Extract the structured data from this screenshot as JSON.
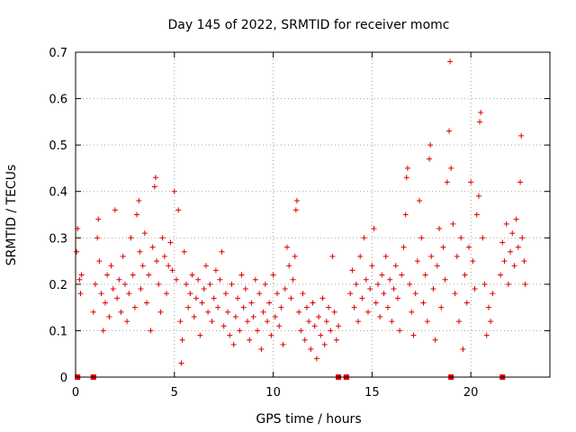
{
  "chart_data": {
    "type": "scatter",
    "title": "Day 145 of 2022, SRMTID for receiver momc",
    "xlabel": "GPS time / hours",
    "ylabel": "SRMTID / TECUs",
    "xlim": [
      0,
      24
    ],
    "ylim": [
      0,
      0.7
    ],
    "xticks": [
      0,
      5,
      10,
      15,
      20
    ],
    "yticks": [
      0,
      0.1,
      0.2,
      0.3,
      0.4,
      0.5,
      0.6,
      0.7
    ],
    "grid": true,
    "marker": "+",
    "color": "#dd0000",
    "series": [
      {
        "name": "SRMTID",
        "points": [
          [
            0.05,
            0.27
          ],
          [
            0.1,
            0.32
          ],
          [
            0.2,
            0.21
          ],
          [
            0.25,
            0.18
          ],
          [
            0.3,
            0.22
          ],
          [
            0.9,
            0.14
          ],
          [
            1.0,
            0.2
          ],
          [
            1.1,
            0.3
          ],
          [
            1.15,
            0.34
          ],
          [
            1.2,
            0.25
          ],
          [
            1.3,
            0.18
          ],
          [
            1.4,
            0.1
          ],
          [
            1.5,
            0.16
          ],
          [
            1.6,
            0.22
          ],
          [
            1.7,
            0.13
          ],
          [
            1.8,
            0.24
          ],
          [
            1.9,
            0.19
          ],
          [
            2.0,
            0.36
          ],
          [
            2.1,
            0.17
          ],
          [
            2.2,
            0.21
          ],
          [
            2.3,
            0.14
          ],
          [
            2.4,
            0.26
          ],
          [
            2.5,
            0.2
          ],
          [
            2.6,
            0.12
          ],
          [
            2.7,
            0.18
          ],
          [
            2.8,
            0.3
          ],
          [
            2.9,
            0.22
          ],
          [
            3.0,
            0.15
          ],
          [
            3.1,
            0.35
          ],
          [
            3.2,
            0.38
          ],
          [
            3.25,
            0.27
          ],
          [
            3.3,
            0.19
          ],
          [
            3.4,
            0.24
          ],
          [
            3.5,
            0.31
          ],
          [
            3.6,
            0.16
          ],
          [
            3.7,
            0.22
          ],
          [
            3.8,
            0.1
          ],
          [
            3.9,
            0.28
          ],
          [
            4.0,
            0.41
          ],
          [
            4.05,
            0.43
          ],
          [
            4.1,
            0.25
          ],
          [
            4.2,
            0.2
          ],
          [
            4.3,
            0.14
          ],
          [
            4.4,
            0.3
          ],
          [
            4.5,
            0.26
          ],
          [
            4.6,
            0.18
          ],
          [
            4.7,
            0.24
          ],
          [
            4.8,
            0.29
          ],
          [
            4.9,
            0.23
          ],
          [
            5.0,
            0.4
          ],
          [
            5.1,
            0.21
          ],
          [
            5.2,
            0.36
          ],
          [
            5.3,
            0.12
          ],
          [
            5.35,
            0.03
          ],
          [
            5.4,
            0.08
          ],
          [
            5.5,
            0.27
          ],
          [
            5.6,
            0.2
          ],
          [
            5.7,
            0.15
          ],
          [
            5.8,
            0.18
          ],
          [
            5.9,
            0.22
          ],
          [
            6.0,
            0.13
          ],
          [
            6.1,
            0.17
          ],
          [
            6.2,
            0.21
          ],
          [
            6.3,
            0.09
          ],
          [
            6.4,
            0.16
          ],
          [
            6.5,
            0.19
          ],
          [
            6.6,
            0.24
          ],
          [
            6.7,
            0.14
          ],
          [
            6.8,
            0.2
          ],
          [
            6.9,
            0.12
          ],
          [
            7.0,
            0.17
          ],
          [
            7.1,
            0.23
          ],
          [
            7.2,
            0.15
          ],
          [
            7.3,
            0.21
          ],
          [
            7.4,
            0.27
          ],
          [
            7.5,
            0.11
          ],
          [
            7.6,
            0.18
          ],
          [
            7.7,
            0.14
          ],
          [
            7.8,
            0.09
          ],
          [
            7.9,
            0.2
          ],
          [
            8.0,
            0.07
          ],
          [
            8.1,
            0.13
          ],
          [
            8.2,
            0.17
          ],
          [
            8.3,
            0.1
          ],
          [
            8.4,
            0.22
          ],
          [
            8.5,
            0.15
          ],
          [
            8.6,
            0.19
          ],
          [
            8.7,
            0.12
          ],
          [
            8.8,
            0.08
          ],
          [
            8.9,
            0.16
          ],
          [
            9.0,
            0.13
          ],
          [
            9.1,
            0.21
          ],
          [
            9.2,
            0.1
          ],
          [
            9.3,
            0.18
          ],
          [
            9.4,
            0.06
          ],
          [
            9.5,
            0.14
          ],
          [
            9.6,
            0.2
          ],
          [
            9.7,
            0.12
          ],
          [
            9.8,
            0.16
          ],
          [
            9.9,
            0.09
          ],
          [
            10.0,
            0.22
          ],
          [
            10.1,
            0.13
          ],
          [
            10.2,
            0.18
          ],
          [
            10.3,
            0.11
          ],
          [
            10.4,
            0.15
          ],
          [
            10.5,
            0.07
          ],
          [
            10.6,
            0.19
          ],
          [
            10.7,
            0.28
          ],
          [
            10.8,
            0.24
          ],
          [
            10.9,
            0.17
          ],
          [
            11.0,
            0.21
          ],
          [
            11.1,
            0.26
          ],
          [
            11.15,
            0.36
          ],
          [
            11.2,
            0.38
          ],
          [
            11.3,
            0.14
          ],
          [
            11.4,
            0.1
          ],
          [
            11.5,
            0.18
          ],
          [
            11.6,
            0.08
          ],
          [
            11.7,
            0.15
          ],
          [
            11.8,
            0.12
          ],
          [
            11.9,
            0.06
          ],
          [
            12.0,
            0.16
          ],
          [
            12.1,
            0.11
          ],
          [
            12.2,
            0.04
          ],
          [
            12.3,
            0.13
          ],
          [
            12.4,
            0.09
          ],
          [
            12.5,
            0.17
          ],
          [
            12.6,
            0.07
          ],
          [
            12.7,
            0.12
          ],
          [
            12.8,
            0.15
          ],
          [
            12.9,
            0.1
          ],
          [
            13.0,
            0.26
          ],
          [
            13.1,
            0.14
          ],
          [
            13.2,
            0.08
          ],
          [
            13.3,
            0.11
          ],
          [
            13.9,
            0.18
          ],
          [
            14.0,
            0.23
          ],
          [
            14.1,
            0.15
          ],
          [
            14.2,
            0.2
          ],
          [
            14.3,
            0.12
          ],
          [
            14.4,
            0.26
          ],
          [
            14.5,
            0.17
          ],
          [
            14.6,
            0.3
          ],
          [
            14.7,
            0.21
          ],
          [
            14.8,
            0.14
          ],
          [
            14.9,
            0.19
          ],
          [
            15.0,
            0.24
          ],
          [
            15.1,
            0.32
          ],
          [
            15.2,
            0.16
          ],
          [
            15.3,
            0.2
          ],
          [
            15.4,
            0.13
          ],
          [
            15.5,
            0.22
          ],
          [
            15.6,
            0.18
          ],
          [
            15.7,
            0.26
          ],
          [
            15.8,
            0.15
          ],
          [
            15.9,
            0.21
          ],
          [
            16.0,
            0.12
          ],
          [
            16.1,
            0.19
          ],
          [
            16.2,
            0.24
          ],
          [
            16.3,
            0.17
          ],
          [
            16.4,
            0.1
          ],
          [
            16.5,
            0.22
          ],
          [
            16.6,
            0.28
          ],
          [
            16.7,
            0.35
          ],
          [
            16.75,
            0.43
          ],
          [
            16.8,
            0.45
          ],
          [
            16.9,
            0.2
          ],
          [
            17.0,
            0.14
          ],
          [
            17.1,
            0.09
          ],
          [
            17.2,
            0.18
          ],
          [
            17.3,
            0.25
          ],
          [
            17.4,
            0.38
          ],
          [
            17.5,
            0.3
          ],
          [
            17.6,
            0.16
          ],
          [
            17.7,
            0.22
          ],
          [
            17.8,
            0.12
          ],
          [
            17.9,
            0.47
          ],
          [
            17.95,
            0.5
          ],
          [
            18.0,
            0.26
          ],
          [
            18.1,
            0.19
          ],
          [
            18.2,
            0.08
          ],
          [
            18.3,
            0.24
          ],
          [
            18.4,
            0.32
          ],
          [
            18.5,
            0.15
          ],
          [
            18.6,
            0.28
          ],
          [
            18.7,
            0.21
          ],
          [
            18.8,
            0.42
          ],
          [
            18.9,
            0.53
          ],
          [
            18.95,
            0.68
          ],
          [
            19.0,
            0.45
          ],
          [
            19.1,
            0.33
          ],
          [
            19.2,
            0.18
          ],
          [
            19.3,
            0.26
          ],
          [
            19.4,
            0.12
          ],
          [
            19.5,
            0.3
          ],
          [
            19.6,
            0.06
          ],
          [
            19.7,
            0.22
          ],
          [
            19.8,
            0.16
          ],
          [
            19.9,
            0.28
          ],
          [
            20.0,
            0.42
          ],
          [
            20.1,
            0.25
          ],
          [
            20.2,
            0.19
          ],
          [
            20.3,
            0.35
          ],
          [
            20.4,
            0.39
          ],
          [
            20.45,
            0.55
          ],
          [
            20.5,
            0.57
          ],
          [
            20.6,
            0.3
          ],
          [
            20.7,
            0.2
          ],
          [
            20.8,
            0.09
          ],
          [
            20.9,
            0.15
          ],
          [
            21.0,
            0.12
          ],
          [
            21.1,
            0.18
          ],
          [
            21.5,
            0.22
          ],
          [
            21.6,
            0.29
          ],
          [
            21.7,
            0.25
          ],
          [
            21.8,
            0.33
          ],
          [
            21.9,
            0.2
          ],
          [
            22.0,
            0.27
          ],
          [
            22.1,
            0.31
          ],
          [
            22.2,
            0.24
          ],
          [
            22.3,
            0.34
          ],
          [
            22.4,
            0.28
          ],
          [
            22.5,
            0.42
          ],
          [
            22.55,
            0.52
          ],
          [
            22.6,
            0.3
          ],
          [
            22.7,
            0.25
          ],
          [
            22.75,
            0.2
          ]
        ]
      }
    ],
    "gap_markers": [
      0.1,
      0.9,
      13.3,
      13.7,
      19.0,
      21.6
    ]
  }
}
